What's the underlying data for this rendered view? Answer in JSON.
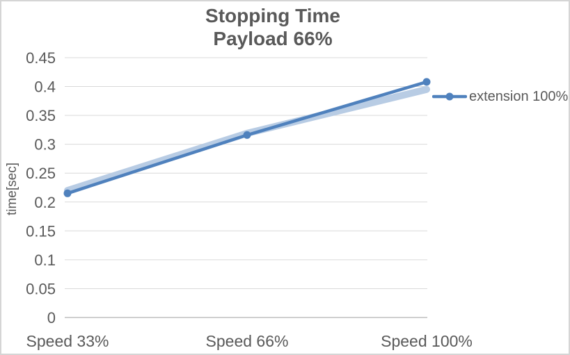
{
  "chart_data": {
    "type": "line",
    "title": "Stopping Time",
    "subtitle": "Payload 66%",
    "categories": [
      "Speed 33%",
      "Speed 66%",
      "Speed 100%"
    ],
    "series": [
      {
        "name": "extension 100%",
        "values": [
          0.215,
          0.316,
          0.408
        ],
        "color": "#4f81bd",
        "marker": "circle",
        "in_legend": true
      },
      {
        "name": "",
        "values": [
          0.22,
          0.319,
          0.395
        ],
        "color": "#b8cce4",
        "marker": "none",
        "in_legend": false,
        "note": "thick light-blue halo line behind main series, no legend entry"
      }
    ],
    "xlabel": "",
    "ylabel": "time[sec]",
    "ylim": [
      0,
      0.45
    ],
    "ytick_step": 0.05,
    "ytick_labels": [
      "0",
      "0.05",
      "0.1",
      "0.15",
      "0.2",
      "0.25",
      "0.3",
      "0.35",
      "0.4",
      "0.45"
    ],
    "grid": "horizontal",
    "legend_position": "right",
    "legend": [
      "extension 100%"
    ],
    "colors": {
      "text": "#595959",
      "gridline": "#d9d9d9",
      "axis_line": "#bfbfbf",
      "border": "#d5d5d5",
      "background": "#ffffff"
    }
  }
}
